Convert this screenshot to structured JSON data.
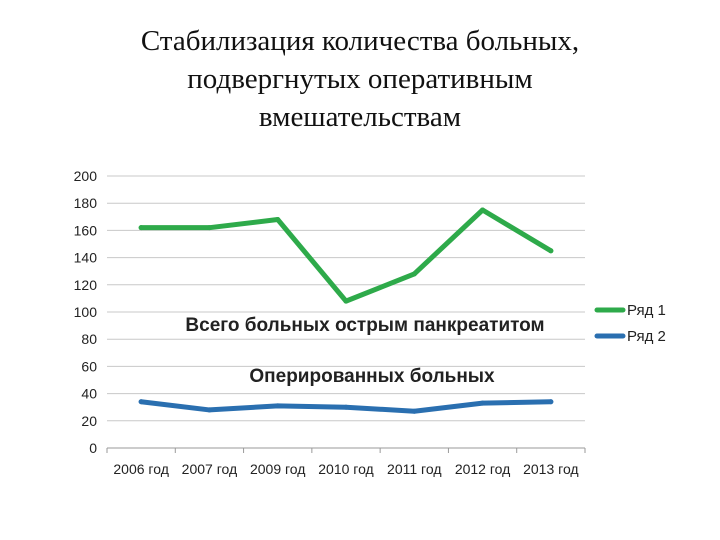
{
  "slide": {
    "title_lines": [
      "Стабилизация количества больных,",
      "подвергнутых оперативным",
      "вмешательствам"
    ]
  },
  "chart_data": {
    "type": "line",
    "title": "",
    "xlabel": "",
    "ylabel": "",
    "ylim": [
      0,
      200
    ],
    "yticks": [
      0,
      20,
      40,
      60,
      80,
      100,
      120,
      140,
      160,
      180,
      200
    ],
    "grid": true,
    "legend_position": "right",
    "categories": [
      "2006 год",
      "2007 год",
      "2009 год",
      "2010 год",
      "2011 год",
      "2012 год",
      "2013 год"
    ],
    "series": [
      {
        "name": "Ряд 1",
        "color": "#2eaa4a",
        "values": [
          162,
          162,
          168,
          108,
          128,
          175,
          145
        ]
      },
      {
        "name": "Ряд 2",
        "color": "#2a6fb0",
        "values": [
          34,
          28,
          31,
          30,
          27,
          33,
          34
        ]
      }
    ],
    "annotations": [
      {
        "text": "Всего больных острым панкреатитом"
      },
      {
        "text": "Оперированных больных"
      }
    ]
  }
}
